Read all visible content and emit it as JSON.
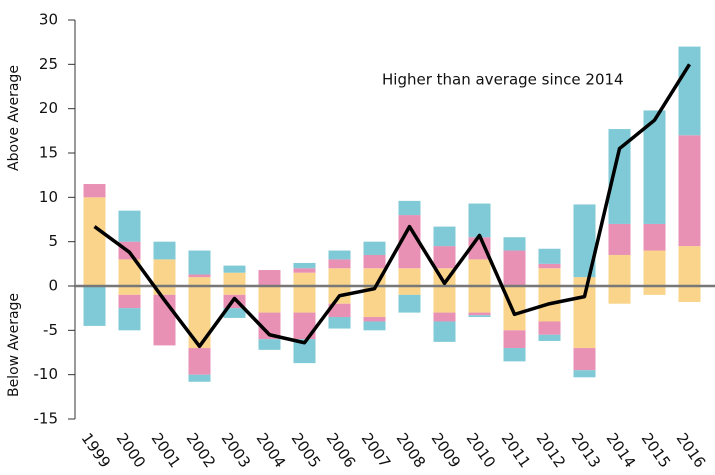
{
  "chart_data": {
    "type": "bar",
    "categories": [
      "1999",
      "2000",
      "2001",
      "2002",
      "2003",
      "2004",
      "2005",
      "2006",
      "2007",
      "2008",
      "2009",
      "2010",
      "2011",
      "2012",
      "2013",
      "2014",
      "2015",
      "2016"
    ],
    "series": [
      {
        "color": "#f9d48a",
        "values": [
          10,
          3,
          3,
          1,
          1.5,
          0,
          1.5,
          2,
          2,
          2,
          2,
          3,
          0,
          2,
          1,
          3.5,
          4,
          4.5
        ]
      },
      {
        "color": "#e891b4",
        "values": [
          1.5,
          2,
          0,
          0.3,
          0,
          1.8,
          0.5,
          1,
          1.5,
          6,
          2.5,
          2.5,
          4,
          0.5,
          0,
          3.5,
          3,
          12.5
        ]
      },
      {
        "color": "#7fcad6",
        "values": [
          0,
          3.5,
          2,
          2.7,
          0.8,
          0,
          0.6,
          1,
          1.5,
          1.6,
          2.2,
          3.8,
          1.5,
          1.7,
          8.2,
          10.7,
          12.8,
          10
        ]
      },
      {
        "color": "#f9d48a",
        "values": [
          0,
          -1,
          -1,
          -7,
          -1,
          -3,
          -3,
          -2,
          -3.5,
          -1,
          -3,
          -3,
          -5,
          -4,
          -7,
          -2,
          -1,
          -1.8
        ]
      },
      {
        "color": "#e891b4",
        "values": [
          0,
          -1.5,
          -5.7,
          -3,
          -1.5,
          -3,
          -3,
          -1.5,
          -0.5,
          0,
          -1,
          -0.3,
          -2,
          -1.5,
          -2.5,
          0,
          0,
          0
        ]
      },
      {
        "color": "#7fcad6",
        "values": [
          -4.5,
          -2.5,
          0,
          -0.8,
          -1.1,
          -1.2,
          -2.7,
          -1.3,
          -1,
          -2,
          -2.3,
          -0.2,
          -1.5,
          -0.7,
          -0.8,
          0,
          0,
          0
        ]
      }
    ],
    "line": {
      "color": "#000000",
      "values": [
        6.7,
        3.8,
        -1.6,
        -6.8,
        -1.4,
        -5.5,
        -6.4,
        -1.1,
        -0.3,
        6.7,
        0.3,
        5.7,
        -3.2,
        -2,
        -1.2,
        15.5,
        18.7,
        25
      ]
    },
    "ylim": [
      -15,
      30
    ],
    "yticks": [
      -15,
      -10,
      -5,
      0,
      5,
      10,
      15,
      20,
      25,
      30
    ],
    "y_label_above": "Above Average",
    "y_label_below": "Below Average",
    "annotation": "Higher than average since 2014"
  }
}
